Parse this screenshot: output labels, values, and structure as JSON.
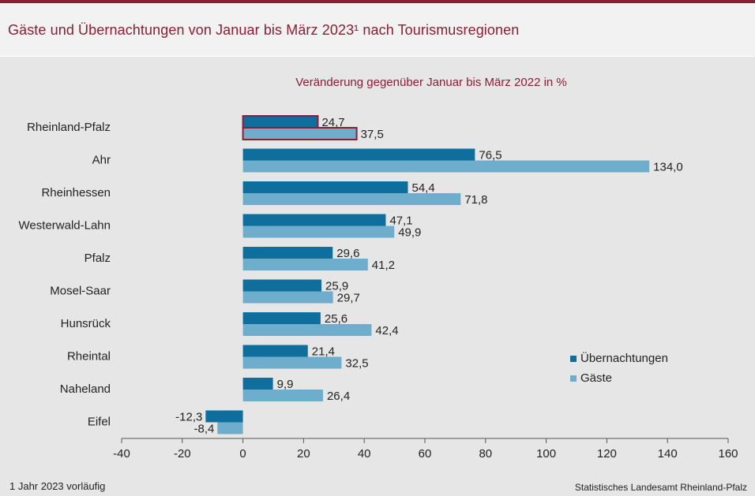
{
  "title": "Gäste und Übernachtungen von Januar bis März 2023¹ nach Tourismusregionen",
  "footnote": "1 Jahr 2023 vorläufig",
  "source": "Statistisches Landesamt Rheinland-Pfalz",
  "colors": {
    "brand": "#8b1e35",
    "uebernachtungen": "#0f6e9b",
    "gaeste": "#6eaecc"
  },
  "chart_data": {
    "type": "bar",
    "orientation": "horizontal",
    "title": "Veränderung gegenüber Januar bis März 2022 in %",
    "categories": [
      "Rheinland-Pfalz",
      "Ahr",
      "Rheinhessen",
      "Westerwald-Lahn",
      "Pfalz",
      "Mosel-Saar",
      "Hunsrück",
      "Rheintal",
      "Naheland",
      "Eifel"
    ],
    "series": [
      {
        "name": "Übernachtungen",
        "values": [
          24.7,
          76.5,
          54.4,
          47.1,
          29.6,
          25.9,
          25.6,
          21.4,
          9.9,
          -12.3
        ],
        "labels": [
          "24,7",
          "76,5",
          "54,4",
          "47,1",
          "29,6",
          "25,9",
          "25,6",
          "21,4",
          "9,9",
          "-12,3"
        ]
      },
      {
        "name": "Gäste",
        "values": [
          37.5,
          134.0,
          71.8,
          49.9,
          41.2,
          29.7,
          42.4,
          32.5,
          26.4,
          -8.4
        ],
        "labels": [
          "37,5",
          "134,0",
          "71,8",
          "49,9",
          "41,2",
          "29,7",
          "42,4",
          "32,5",
          "26,4",
          "-8,4"
        ]
      }
    ],
    "highlighted_category": "Rheinland-Pfalz",
    "xlim": [
      -40,
      160
    ],
    "xticks": [
      -40,
      -20,
      0,
      20,
      40,
      60,
      80,
      100,
      120,
      140,
      160
    ],
    "xtick_labels": [
      "-40",
      "-20",
      "0",
      "20",
      "40",
      "60",
      "80",
      "100",
      "120",
      "140",
      "160"
    ],
    "xlabel": "",
    "ylabel": "",
    "grid": false,
    "legend_position": "right"
  }
}
